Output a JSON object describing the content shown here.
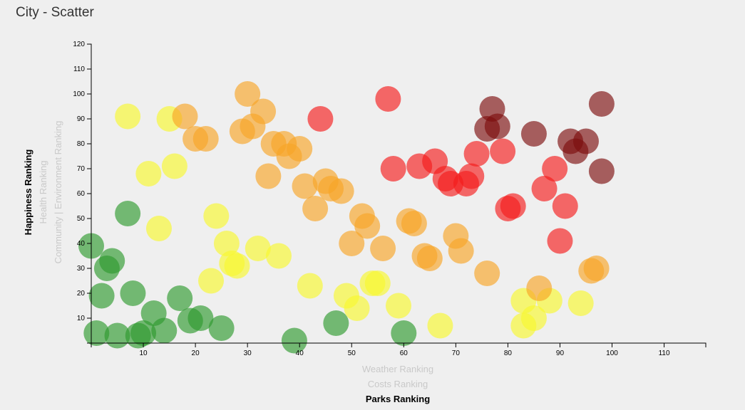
{
  "title": "City - Scatter",
  "chart_data": {
    "type": "scatter",
    "x_labels": [
      {
        "text": "Weather Ranking",
        "active": false
      },
      {
        "text": "Costs Ranking",
        "active": false
      },
      {
        "text": "Parks Ranking",
        "active": true
      }
    ],
    "y_labels": [
      {
        "text": "Community | Environment Ranking",
        "active": false
      },
      {
        "text": "Health Ranking",
        "active": false
      },
      {
        "text": "Happiness Ranking",
        "active": true
      }
    ],
    "xlim": [
      0,
      118
    ],
    "ylim": [
      0,
      120
    ],
    "x_ticks": [
      10,
      20,
      30,
      40,
      50,
      60,
      70,
      80,
      90,
      100,
      110
    ],
    "y_ticks": [
      10,
      20,
      30,
      40,
      50,
      60,
      70,
      80,
      90,
      100,
      110,
      120
    ],
    "grid": false,
    "colors": {
      "green": "#2e9a2e",
      "yellow": "#f7f72e",
      "orange": "#f7a526",
      "red": "#f51c1c",
      "darkred": "#7d0e0e"
    },
    "points": [
      {
        "x": 0,
        "y": 39,
        "c": "green"
      },
      {
        "x": 1,
        "y": 4,
        "c": "green"
      },
      {
        "x": 2,
        "y": 19,
        "c": "green"
      },
      {
        "x": 3,
        "y": 30,
        "c": "green"
      },
      {
        "x": 4,
        "y": 33,
        "c": "green"
      },
      {
        "x": 5,
        "y": 3,
        "c": "green"
      },
      {
        "x": 7,
        "y": 52,
        "c": "green"
      },
      {
        "x": 9,
        "y": 3,
        "c": "green"
      },
      {
        "x": 10,
        "y": 4,
        "c": "green"
      },
      {
        "x": 8,
        "y": 20,
        "c": "green"
      },
      {
        "x": 12,
        "y": 12,
        "c": "green"
      },
      {
        "x": 14,
        "y": 5,
        "c": "green"
      },
      {
        "x": 17,
        "y": 18,
        "c": "green"
      },
      {
        "x": 19,
        "y": 9,
        "c": "green"
      },
      {
        "x": 21,
        "y": 10,
        "c": "green"
      },
      {
        "x": 25,
        "y": 6,
        "c": "green"
      },
      {
        "x": 39,
        "y": 1,
        "c": "green"
      },
      {
        "x": 47,
        "y": 8,
        "c": "green"
      },
      {
        "x": 60,
        "y": 4,
        "c": "green"
      },
      {
        "x": 7,
        "y": 91,
        "c": "yellow"
      },
      {
        "x": 11,
        "y": 68,
        "c": "yellow"
      },
      {
        "x": 13,
        "y": 46,
        "c": "yellow"
      },
      {
        "x": 15,
        "y": 90,
        "c": "yellow"
      },
      {
        "x": 16,
        "y": 71,
        "c": "yellow"
      },
      {
        "x": 23,
        "y": 25,
        "c": "yellow"
      },
      {
        "x": 24,
        "y": 51,
        "c": "yellow"
      },
      {
        "x": 26,
        "y": 40,
        "c": "yellow"
      },
      {
        "x": 27,
        "y": 32,
        "c": "yellow"
      },
      {
        "x": 28,
        "y": 31,
        "c": "yellow"
      },
      {
        "x": 32,
        "y": 38,
        "c": "yellow"
      },
      {
        "x": 36,
        "y": 35,
        "c": "yellow"
      },
      {
        "x": 42,
        "y": 23,
        "c": "yellow"
      },
      {
        "x": 49,
        "y": 19,
        "c": "yellow"
      },
      {
        "x": 51,
        "y": 14,
        "c": "yellow"
      },
      {
        "x": 54,
        "y": 24,
        "c": "yellow"
      },
      {
        "x": 55,
        "y": 24,
        "c": "yellow"
      },
      {
        "x": 59,
        "y": 15,
        "c": "yellow"
      },
      {
        "x": 67,
        "y": 7,
        "c": "yellow"
      },
      {
        "x": 83,
        "y": 17,
        "c": "yellow"
      },
      {
        "x": 83,
        "y": 7,
        "c": "yellow"
      },
      {
        "x": 85,
        "y": 10,
        "c": "yellow"
      },
      {
        "x": 88,
        "y": 17,
        "c": "yellow"
      },
      {
        "x": 94,
        "y": 16,
        "c": "yellow"
      },
      {
        "x": 18,
        "y": 91,
        "c": "orange"
      },
      {
        "x": 20,
        "y": 82,
        "c": "orange"
      },
      {
        "x": 22,
        "y": 82,
        "c": "orange"
      },
      {
        "x": 30,
        "y": 100,
        "c": "orange"
      },
      {
        "x": 29,
        "y": 85,
        "c": "orange"
      },
      {
        "x": 31,
        "y": 87,
        "c": "orange"
      },
      {
        "x": 33,
        "y": 93,
        "c": "orange"
      },
      {
        "x": 34,
        "y": 67,
        "c": "orange"
      },
      {
        "x": 35,
        "y": 80,
        "c": "orange"
      },
      {
        "x": 37,
        "y": 80,
        "c": "orange"
      },
      {
        "x": 38,
        "y": 75,
        "c": "orange"
      },
      {
        "x": 40,
        "y": 78,
        "c": "orange"
      },
      {
        "x": 41,
        "y": 63,
        "c": "orange"
      },
      {
        "x": 43,
        "y": 54,
        "c": "orange"
      },
      {
        "x": 45,
        "y": 65,
        "c": "orange"
      },
      {
        "x": 46,
        "y": 62,
        "c": "orange"
      },
      {
        "x": 48,
        "y": 61,
        "c": "orange"
      },
      {
        "x": 50,
        "y": 40,
        "c": "orange"
      },
      {
        "x": 52,
        "y": 51,
        "c": "orange"
      },
      {
        "x": 53,
        "y": 47,
        "c": "orange"
      },
      {
        "x": 56,
        "y": 38,
        "c": "orange"
      },
      {
        "x": 61,
        "y": 49,
        "c": "orange"
      },
      {
        "x": 62,
        "y": 48,
        "c": "orange"
      },
      {
        "x": 64,
        "y": 35,
        "c": "orange"
      },
      {
        "x": 65,
        "y": 34,
        "c": "orange"
      },
      {
        "x": 70,
        "y": 43,
        "c": "orange"
      },
      {
        "x": 71,
        "y": 37,
        "c": "orange"
      },
      {
        "x": 76,
        "y": 28,
        "c": "orange"
      },
      {
        "x": 86,
        "y": 22,
        "c": "orange"
      },
      {
        "x": 96,
        "y": 29,
        "c": "orange"
      },
      {
        "x": 97,
        "y": 30,
        "c": "orange"
      },
      {
        "x": 44,
        "y": 90,
        "c": "red"
      },
      {
        "x": 57,
        "y": 98,
        "c": "red"
      },
      {
        "x": 58,
        "y": 70,
        "c": "red"
      },
      {
        "x": 63,
        "y": 71,
        "c": "red"
      },
      {
        "x": 66,
        "y": 73,
        "c": "red"
      },
      {
        "x": 68,
        "y": 66,
        "c": "red"
      },
      {
        "x": 69,
        "y": 64,
        "c": "red"
      },
      {
        "x": 72,
        "y": 64,
        "c": "red"
      },
      {
        "x": 73,
        "y": 67,
        "c": "red"
      },
      {
        "x": 74,
        "y": 76,
        "c": "red"
      },
      {
        "x": 79,
        "y": 77,
        "c": "red"
      },
      {
        "x": 80,
        "y": 54,
        "c": "red"
      },
      {
        "x": 81,
        "y": 55,
        "c": "red"
      },
      {
        "x": 87,
        "y": 62,
        "c": "red"
      },
      {
        "x": 89,
        "y": 70,
        "c": "red"
      },
      {
        "x": 90,
        "y": 41,
        "c": "red"
      },
      {
        "x": 91,
        "y": 55,
        "c": "red"
      },
      {
        "x": 76,
        "y": 86,
        "c": "darkred"
      },
      {
        "x": 77,
        "y": 94,
        "c": "darkred"
      },
      {
        "x": 78,
        "y": 87,
        "c": "darkred"
      },
      {
        "x": 85,
        "y": 84,
        "c": "darkred"
      },
      {
        "x": 92,
        "y": 81,
        "c": "darkred"
      },
      {
        "x": 93,
        "y": 77,
        "c": "darkred"
      },
      {
        "x": 95,
        "y": 81,
        "c": "darkred"
      },
      {
        "x": 98,
        "y": 96,
        "c": "darkred"
      },
      {
        "x": 98,
        "y": 69,
        "c": "darkred"
      }
    ]
  }
}
